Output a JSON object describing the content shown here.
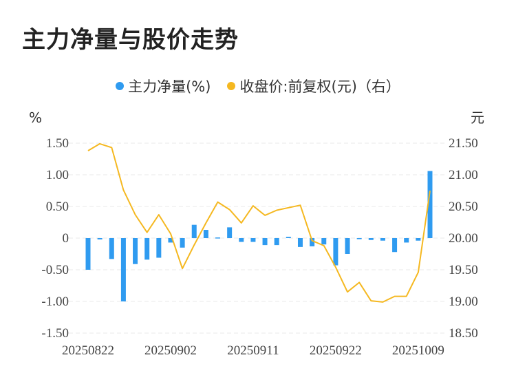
{
  "title": "主力净量与股价走势",
  "legend": {
    "left": {
      "label": "主力净量(%)",
      "color": "#2f9bf0"
    },
    "right": {
      "label": "收盘价:前复权(元)（右）",
      "color": "#f5b820"
    }
  },
  "chart_data": {
    "type": "bar+line",
    "left_unit": "%",
    "right_unit": "元",
    "left_ticks": [
      "1.50",
      "1.00",
      "0.50",
      "0",
      "-0.50",
      "-1.00",
      "-1.50"
    ],
    "right_ticks": [
      "21.50",
      "21.00",
      "20.50",
      "20.00",
      "19.50",
      "19.00",
      "18.50"
    ],
    "x_tick_labels": [
      "20250822",
      "20250902",
      "20250911",
      "20250922",
      "20251009"
    ],
    "x_tick_index": [
      0,
      7,
      14,
      21,
      28
    ],
    "ylim_left": [
      -1.5,
      1.5
    ],
    "ylim_right": [
      18.5,
      21.5
    ],
    "grid": true,
    "series": [
      {
        "name": "主力净量(%)",
        "kind": "bar",
        "axis": "left",
        "values": [
          -0.5,
          -0.02,
          -0.33,
          -1.0,
          -0.41,
          -0.34,
          -0.31,
          -0.07,
          -0.15,
          0.21,
          0.13,
          0.01,
          0.17,
          -0.06,
          -0.06,
          -0.11,
          -0.11,
          0.02,
          -0.14,
          -0.13,
          -0.1,
          -0.43,
          -0.25,
          -0.01,
          -0.03,
          -0.04,
          -0.22,
          -0.07,
          -0.04,
          1.06
        ]
      },
      {
        "name": "收盘价:前复权(元)（右）",
        "kind": "line",
        "axis": "right",
        "values": [
          21.38,
          21.49,
          21.43,
          20.76,
          20.37,
          20.09,
          20.37,
          20.07,
          19.52,
          19.89,
          20.24,
          20.57,
          20.45,
          20.24,
          20.51,
          20.36,
          20.44,
          20.48,
          20.52,
          19.96,
          19.88,
          19.54,
          19.15,
          19.3,
          19.01,
          18.99,
          19.08,
          19.08,
          19.46,
          20.75
        ]
      }
    ]
  }
}
